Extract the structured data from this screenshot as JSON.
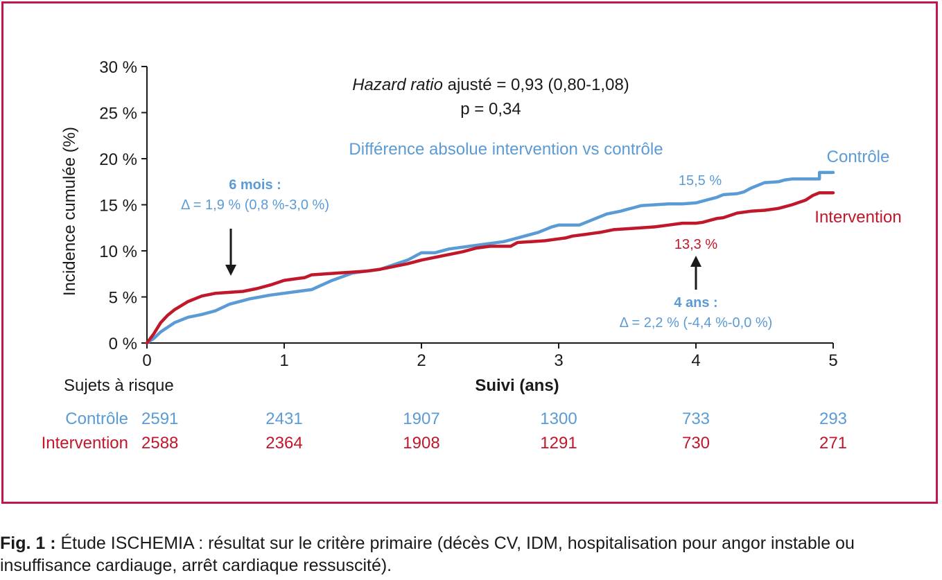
{
  "chart_data": {
    "type": "line",
    "title_line1_italic": "Hazard ratio",
    "title_line1_rest": " ajusté = 0,93 (0,80-1,08)",
    "title_line2": "p = 0,34",
    "difference_header": "Différence absolue intervention vs contrôle",
    "xlabel": "Suivi (ans)",
    "ylabel": "Incidence cumulée (%)",
    "xlim": [
      0,
      5
    ],
    "ylim": [
      0,
      30
    ],
    "x_ticks": [
      "0",
      "1",
      "2",
      "3",
      "4",
      "5"
    ],
    "y_ticks": [
      "0 %",
      "5 %",
      "10 %",
      "15 %",
      "20 %",
      "25 %",
      "30 %"
    ],
    "grid": false,
    "series": [
      {
        "name": "Contrôle",
        "color": "#5b9bd5",
        "x": [
          0,
          0.05,
          0.1,
          0.2,
          0.3,
          0.4,
          0.5,
          0.6,
          0.75,
          0.9,
          1.0,
          1.1,
          1.2,
          1.35,
          1.5,
          1.7,
          1.8,
          1.9,
          2.0,
          2.1,
          2.2,
          2.4,
          2.6,
          2.7,
          2.85,
          2.95,
          3.0,
          3.1,
          3.15,
          3.25,
          3.35,
          3.45,
          3.5,
          3.55,
          3.6,
          3.7,
          3.8,
          3.9,
          4.0,
          4.1,
          4.15,
          4.2,
          4.3,
          4.35,
          4.4,
          4.5,
          4.6,
          4.65,
          4.7,
          4.8,
          4.85,
          4.9,
          4.9,
          5.0
        ],
        "y": [
          0,
          0.5,
          1.2,
          2.2,
          2.8,
          3.1,
          3.5,
          4.2,
          4.8,
          5.2,
          5.4,
          5.6,
          5.8,
          6.8,
          7.6,
          8.0,
          8.5,
          9.0,
          9.8,
          9.8,
          10.2,
          10.6,
          11.0,
          11.4,
          12.0,
          12.6,
          12.8,
          12.8,
          12.8,
          13.4,
          14.0,
          14.3,
          14.5,
          14.7,
          14.9,
          15.0,
          15.1,
          15.1,
          15.2,
          15.6,
          15.8,
          16.1,
          16.2,
          16.4,
          16.8,
          17.4,
          17.5,
          17.7,
          17.8,
          17.8,
          17.8,
          17.8,
          18.5,
          18.5
        ]
      },
      {
        "name": "Intervention",
        "color": "#c0172b",
        "x": [
          0,
          0.05,
          0.1,
          0.15,
          0.2,
          0.3,
          0.4,
          0.5,
          0.6,
          0.7,
          0.8,
          0.9,
          1.0,
          1.1,
          1.15,
          1.2,
          1.3,
          1.4,
          1.5,
          1.6,
          1.7,
          1.8,
          1.9,
          2.0,
          2.1,
          2.2,
          2.3,
          2.4,
          2.5,
          2.6,
          2.65,
          2.7,
          2.8,
          2.9,
          3.0,
          3.05,
          3.1,
          3.2,
          3.25,
          3.3,
          3.4,
          3.5,
          3.6,
          3.7,
          3.8,
          3.9,
          4.0,
          4.05,
          4.1,
          4.15,
          4.2,
          4.3,
          4.4,
          4.5,
          4.6,
          4.65,
          4.7,
          4.8,
          4.85,
          4.9,
          5.0
        ],
        "y": [
          0,
          1.0,
          2.2,
          3.0,
          3.6,
          4.5,
          5.1,
          5.4,
          5.5,
          5.6,
          5.9,
          6.3,
          6.8,
          7.0,
          7.1,
          7.4,
          7.5,
          7.6,
          7.7,
          7.8,
          8.0,
          8.3,
          8.6,
          9.0,
          9.3,
          9.6,
          9.9,
          10.3,
          10.5,
          10.5,
          10.5,
          10.9,
          11.0,
          11.1,
          11.3,
          11.4,
          11.6,
          11.8,
          11.9,
          12.0,
          12.3,
          12.4,
          12.5,
          12.6,
          12.8,
          13.0,
          13.0,
          13.1,
          13.3,
          13.5,
          13.6,
          14.1,
          14.3,
          14.4,
          14.6,
          14.8,
          15.0,
          15.5,
          16.0,
          16.3,
          16.3
        ]
      }
    ],
    "annotations": {
      "six_months_title": "6 mois :",
      "six_months_delta": "Δ = 1,9 % (0,8 %-3,0 %)",
      "four_years_title": "4 ans :",
      "four_years_delta": "Δ = 2,2 % (-4,4 %-0,0 %)",
      "control_value": "15,5 %",
      "intervention_value": "13,3 %"
    },
    "risk_table": {
      "header": "Sujets à risque",
      "rows": [
        {
          "label": "Contrôle",
          "color": "#5b9bd5",
          "values": [
            "2591",
            "2431",
            "1907",
            "1300",
            "733",
            "293"
          ]
        },
        {
          "label": "Intervention",
          "color": "#c0172b",
          "values": [
            "2588",
            "2364",
            "1908",
            "1291",
            "730",
            "271"
          ]
        }
      ]
    }
  },
  "caption": {
    "label": "Fig. 1 :",
    "text": " Étude ISCHEMIA : résultat sur le critère primaire (décès CV, IDM, hospitalisation pour angor instable ou insuffisance cardiauge, arrêt cardiaque ressuscité)."
  },
  "colors": {
    "frame": "#c0174f",
    "control": "#5b9bd5",
    "intervention": "#c0172b",
    "axis": "#1a1a1a"
  }
}
